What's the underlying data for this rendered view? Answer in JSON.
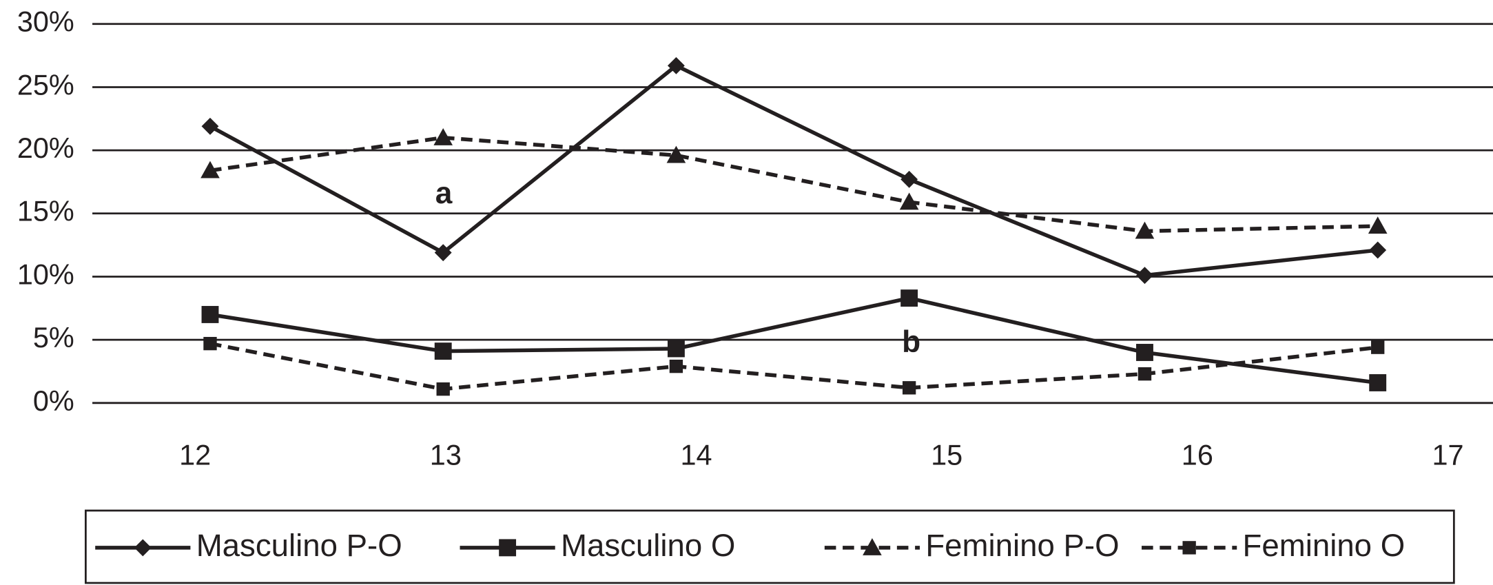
{
  "chart_data": {
    "type": "line",
    "x": [
      12.06,
      12.99,
      13.92,
      14.85,
      15.79,
      16.72
    ],
    "xlim": [
      11.59,
      17.18
    ],
    "xticks": [
      12,
      13,
      14,
      15,
      16,
      17
    ],
    "ylim": [
      0,
      30
    ],
    "yticks": [
      {
        "value": 0,
        "label": "0%"
      },
      {
        "value": 5,
        "label": "5%"
      },
      {
        "value": 10,
        "label": "10%"
      },
      {
        "value": 15,
        "label": "15%"
      },
      {
        "value": 20,
        "label": "20%"
      },
      {
        "value": 25,
        "label": "25%"
      },
      {
        "value": 30,
        "label": "30%"
      }
    ],
    "grid": true,
    "legend": "bottom",
    "annotations": [
      "a",
      "b"
    ],
    "series": [
      {
        "name": "Masculino P-O",
        "color": "#231f20",
        "dash": "solid",
        "marker": "diamond",
        "values": [
          21.9,
          11.9,
          26.7,
          17.7,
          10.1,
          12.1
        ]
      },
      {
        "name": "Masculino O",
        "color": "#231f20",
        "dash": "solid",
        "marker": "square",
        "values": [
          7.0,
          4.1,
          4.3,
          8.3,
          4.0,
          1.6
        ]
      },
      {
        "name": "Feminino P-O",
        "color": "#231f20",
        "dash": "dashed",
        "marker": "triangle",
        "values": [
          18.4,
          21.0,
          19.6,
          15.9,
          13.6,
          14.0
        ]
      },
      {
        "name": "Feminino O",
        "color": "#231f20",
        "dash": "dashed",
        "marker": "small-square",
        "values": [
          4.7,
          1.1,
          2.9,
          1.2,
          2.3,
          4.4
        ]
      }
    ]
  }
}
